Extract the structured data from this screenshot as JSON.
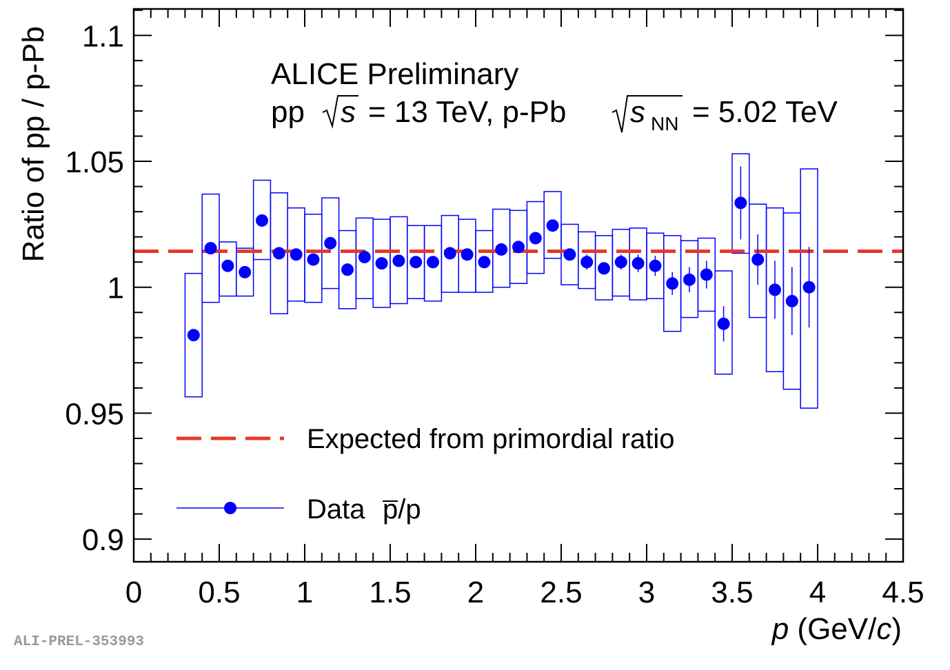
{
  "chart_data": {
    "type": "scatter",
    "header": {
      "line1": "ALICE Preliminary",
      "line2_pp": "pp",
      "sqrt_s": "s",
      "line2_mid": "= 13 TeV, p-Pb",
      "sqrt_snn": "s",
      "snn_sub": "NN",
      "line2_end": "= 5.02 TeV"
    },
    "xlabel_var": "p",
    "xlabel_units_pre": "(GeV/",
    "xlabel_units_c": "c",
    "xlabel_units_post": ")",
    "ylabel": "Ratio of pp / p-Pb",
    "xlim": [
      0,
      4.5
    ],
    "ylim": [
      0.891,
      1.1105
    ],
    "x_ticks": [
      "0",
      "0.5",
      "1",
      "1.5",
      "2",
      "2.5",
      "3",
      "3.5",
      "4",
      "4.5"
    ],
    "y_ticks": [
      "0.9",
      "0.95",
      "1",
      "1.05",
      "1.1"
    ],
    "grid": false,
    "watermark": "ALI-PREL-353993",
    "reference_line": {
      "name": "Expected from primordial ratio",
      "value": 1.0143,
      "color": "#e53a2a"
    },
    "legend": {
      "line_label": "Expected from primordial ratio",
      "data_label_pre": "Data ",
      "data_label_pbar": "p",
      "data_label_post": "/p"
    },
    "series": [
      {
        "name": "Data p̄/p",
        "color": "#0000ff",
        "x": [
          0.35,
          0.45,
          0.55,
          0.65,
          0.75,
          0.85,
          0.95,
          1.05,
          1.15,
          1.25,
          1.35,
          1.45,
          1.55,
          1.65,
          1.75,
          1.85,
          1.95,
          2.05,
          2.15,
          2.25,
          2.35,
          2.45,
          2.55,
          2.65,
          2.75,
          2.85,
          2.95,
          3.05,
          3.15,
          3.25,
          3.35,
          3.45,
          3.55,
          3.65,
          3.75,
          3.85,
          3.95
        ],
        "y": [
          0.981,
          1.0155,
          1.0085,
          1.006,
          1.0265,
          1.0135,
          1.013,
          1.011,
          1.0175,
          1.007,
          1.012,
          1.0095,
          1.0105,
          1.01,
          1.01,
          1.0135,
          1.013,
          1.01,
          1.015,
          1.016,
          1.0195,
          1.0245,
          1.013,
          1.01,
          1.0075,
          1.01,
          1.0095,
          1.0085,
          1.0015,
          1.003,
          1.005,
          0.9855,
          1.0335,
          1.011,
          0.999,
          0.9945,
          1.0
        ],
        "stat_err": [
          0.0005,
          0.0005,
          0.0005,
          0.0005,
          0.0005,
          0.0005,
          0.0005,
          0.0005,
          0.0005,
          0.0005,
          0.0005,
          0.0005,
          0.0005,
          0.0005,
          0.0005,
          0.0005,
          0.0005,
          0.0005,
          0.0005,
          0.0005,
          0.0005,
          0.0005,
          0.0015,
          0.003,
          0.0025,
          0.003,
          0.0035,
          0.004,
          0.0045,
          0.005,
          0.0055,
          0.007,
          0.0145,
          0.01,
          0.0115,
          0.0135,
          0.016
        ],
        "sys_lo": [
          0.9565,
          0.994,
          0.9965,
          0.9965,
          1.011,
          0.9895,
          0.9945,
          0.994,
          0.9995,
          0.9915,
          0.9955,
          0.992,
          0.9935,
          0.9955,
          0.9945,
          0.998,
          0.998,
          0.998,
          1.0,
          1.0015,
          1.0055,
          1.0115,
          1.001,
          0.9995,
          0.995,
          0.9965,
          0.995,
          0.9955,
          0.9825,
          0.988,
          0.9905,
          0.9655,
          1.0135,
          0.988,
          0.9665,
          0.9595,
          0.952
        ],
        "sys_hi": [
          1.0055,
          1.037,
          1.018,
          1.0155,
          1.0425,
          1.0375,
          1.0315,
          1.029,
          1.0355,
          1.0225,
          1.0275,
          1.027,
          1.028,
          1.0245,
          1.0245,
          1.0285,
          1.027,
          1.0225,
          1.031,
          1.0305,
          1.034,
          1.038,
          1.025,
          1.022,
          1.0205,
          1.023,
          1.0235,
          1.0215,
          1.0205,
          1.0185,
          1.0195,
          1.0065,
          1.053,
          1.033,
          1.0315,
          1.0295,
          1.047
        ]
      }
    ]
  }
}
